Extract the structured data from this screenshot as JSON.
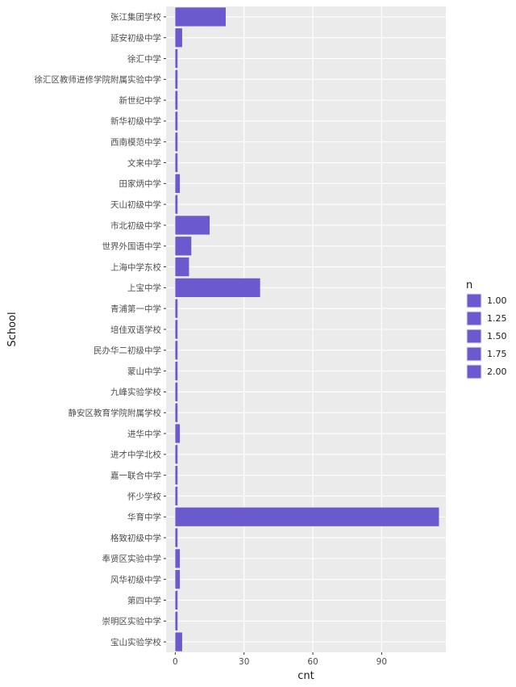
{
  "chart_data": {
    "type": "bar",
    "orientation": "horizontal",
    "xlabel": "cnt",
    "ylabel": "School",
    "xlim": [
      -4,
      118
    ],
    "x_ticks": [
      0,
      30,
      60,
      90
    ],
    "grid": true,
    "categories": [
      "张江集团学校",
      "延安初级中学",
      "徐汇中学",
      "徐汇区教师进修学院附属实验中学",
      "新世纪中学",
      "新华初级中学",
      "西南模范中学",
      "文来中学",
      "田家炳中学",
      "天山初级中学",
      "市北初级中学",
      "世界外国语中学",
      "上海中学东校",
      "上宝中学",
      "青浦第一中学",
      "培佳双语学校",
      "民办华二初级中学",
      "蒙山中学",
      "九峰实验学校",
      "静安区教育学院附属学校",
      "进华中学",
      "进才中学北校",
      "嘉一联合中学",
      "怀少学校",
      "华育中学",
      "格致初级中学",
      "奉贤区实验中学",
      "风华初级中学",
      "第四中学",
      "崇明区实验中学",
      "宝山实验学校"
    ],
    "values": [
      22,
      3,
      1,
      1,
      1,
      1,
      1,
      1,
      2,
      1,
      15,
      7,
      6,
      37,
      1,
      1,
      1,
      1,
      1,
      1,
      2,
      1,
      1,
      1,
      115,
      1,
      2,
      2,
      1,
      1,
      3
    ],
    "bar_color": "#6a5acd",
    "legend": {
      "title": "n",
      "position": "right",
      "entries": [
        "1.00",
        "1.25",
        "1.50",
        "1.75",
        "2.00"
      ],
      "color": "#6a5acd"
    }
  }
}
